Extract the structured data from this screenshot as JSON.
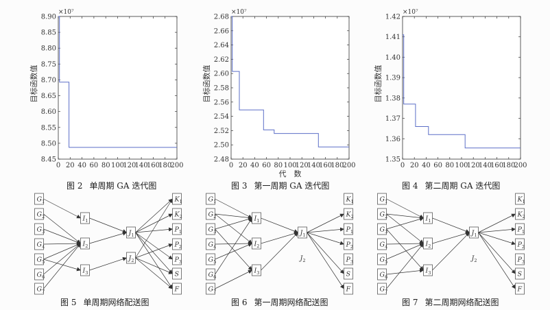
{
  "chart_data": [
    {
      "type": "line",
      "figure_number": "图 2",
      "caption": "单周期 GA 迭代图",
      "multiplier": "×10⁷",
      "xlabel": "",
      "ylabel": "目标函数值",
      "xlim": [
        0,
        200
      ],
      "ylim": [
        8.45,
        8.9
      ],
      "xticks": [
        0,
        20,
        40,
        60,
        80,
        100,
        120,
        140,
        160,
        180,
        200
      ],
      "yticks": [
        8.45,
        8.5,
        8.55,
        8.6,
        8.65,
        8.7,
        8.75,
        8.8,
        8.85,
        8.9
      ],
      "ytick_labels": [
        "8.45",
        "8.50",
        "8.55",
        "8.60",
        "8.65",
        "8.70",
        "8.75",
        "8.80",
        "8.85",
        "8.90"
      ],
      "x": [
        0,
        2,
        2,
        18,
        18,
        200
      ],
      "y": [
        8.9,
        8.9,
        8.693,
        8.693,
        8.487,
        8.487
      ],
      "grid": false,
      "line_color": "#5b6ec7"
    },
    {
      "type": "line",
      "figure_number": "图 3",
      "caption": "第一周期 GA 迭代图",
      "multiplier": "×10⁷",
      "xlabel": "代　数",
      "ylabel": "目标函数值",
      "xlim": [
        0,
        200
      ],
      "ylim": [
        2.48,
        2.68
      ],
      "xticks": [
        0,
        20,
        40,
        60,
        80,
        100,
        120,
        140,
        160,
        180,
        200
      ],
      "yticks": [
        2.48,
        2.5,
        2.52,
        2.54,
        2.56,
        2.58,
        2.6,
        2.62,
        2.64,
        2.66,
        2.68
      ],
      "ytick_labels": [
        "2.48",
        "2.50",
        "2.52",
        "2.54",
        "2.56",
        "2.58",
        "2.60",
        "2.62",
        "2.64",
        "2.66",
        "2.68"
      ],
      "x": [
        0,
        2,
        2,
        14,
        14,
        55,
        55,
        73,
        73,
        148,
        148,
        200
      ],
      "y": [
        2.68,
        2.68,
        2.603,
        2.603,
        2.549,
        2.549,
        2.521,
        2.521,
        2.516,
        2.516,
        2.497,
        2.497
      ],
      "grid": false,
      "line_color": "#5b6ec7"
    },
    {
      "type": "line",
      "figure_number": "图 4",
      "caption": "第二周期 GA 迭代图",
      "multiplier": "×10⁷",
      "xlabel": "",
      "ylabel": "目标函数值",
      "xlim": [
        0,
        200
      ],
      "ylim": [
        1.35,
        1.42
      ],
      "xticks": [
        0,
        20,
        40,
        60,
        80,
        100,
        120,
        140,
        160,
        180,
        200
      ],
      "yticks": [
        1.35,
        1.36,
        1.37,
        1.38,
        1.39,
        1.4,
        1.41,
        1.42
      ],
      "ytick_labels": [
        "1.35",
        "1.36",
        "1.37",
        "1.38",
        "1.39",
        "1.40",
        "1.41",
        "1.42"
      ],
      "x": [
        0,
        2,
        2,
        22,
        22,
        44,
        44,
        106,
        106,
        200
      ],
      "y": [
        1.411,
        1.411,
        1.377,
        1.377,
        1.366,
        1.366,
        1.362,
        1.362,
        1.3555,
        1.3555
      ],
      "grid": false,
      "line_color": "#5b6ec7"
    }
  ],
  "network_figures": [
    {
      "figure_number": "图 5",
      "caption": "单周期网络配送图",
      "edges": [
        [
          "G1",
          "I1"
        ],
        [
          "G2",
          "I2"
        ],
        [
          "G3",
          "I2"
        ],
        [
          "G4",
          "I2"
        ],
        [
          "G5",
          "I2"
        ],
        [
          "G6",
          "I2"
        ],
        [
          "G7",
          "I2"
        ],
        [
          "G5",
          "I3"
        ],
        [
          "I1",
          "J1"
        ],
        [
          "I2",
          "J1"
        ],
        [
          "I3",
          "J2"
        ],
        [
          "J1",
          "K1"
        ],
        [
          "J1",
          "K2"
        ],
        [
          "J1",
          "P1"
        ],
        [
          "J1",
          "P3"
        ],
        [
          "J1",
          "S"
        ],
        [
          "J1",
          "F"
        ],
        [
          "J2",
          "K1"
        ],
        [
          "J2",
          "P2"
        ],
        [
          "J2",
          "S"
        ],
        [
          "J2",
          "F"
        ]
      ]
    },
    {
      "figure_number": "图 6",
      "caption": "第一周期网络配送图",
      "edges": [
        [
          "G1",
          "I1"
        ],
        [
          "G2",
          "I1"
        ],
        [
          "G3",
          "I1"
        ],
        [
          "G2",
          "I2"
        ],
        [
          "G4",
          "I2"
        ],
        [
          "G5",
          "I2"
        ],
        [
          "G6",
          "I1"
        ],
        [
          "G3",
          "I3"
        ],
        [
          "G7",
          "I3"
        ],
        [
          "I1",
          "J1"
        ],
        [
          "I2",
          "J1"
        ],
        [
          "I3",
          "J1"
        ],
        [
          "J1",
          "K2"
        ],
        [
          "J1",
          "P1"
        ],
        [
          "J1",
          "P2"
        ],
        [
          "J1",
          "S"
        ],
        [
          "J1",
          "F"
        ]
      ]
    },
    {
      "figure_number": "图 7",
      "caption": "第二周期网络配送图",
      "edges": [
        [
          "G1",
          "I1"
        ],
        [
          "G2",
          "I1"
        ],
        [
          "G3",
          "I1"
        ],
        [
          "G2",
          "I2"
        ],
        [
          "G4",
          "I2"
        ],
        [
          "G5",
          "I2"
        ],
        [
          "G3",
          "I3"
        ],
        [
          "G6",
          "I3"
        ],
        [
          "G7",
          "I2"
        ],
        [
          "I1",
          "J1"
        ],
        [
          "I2",
          "J1"
        ],
        [
          "I3",
          "J1"
        ],
        [
          "J1",
          "K2"
        ],
        [
          "J1",
          "P1"
        ],
        [
          "J1",
          "P2"
        ],
        [
          "J1",
          "S"
        ],
        [
          "J1",
          "F"
        ]
      ]
    }
  ],
  "network_nodes": {
    "G1": {
      "base": "G",
      "sub": "1"
    },
    "G2": {
      "base": "G",
      "sub": "2"
    },
    "G3": {
      "base": "G",
      "sub": "3"
    },
    "G4": {
      "base": "G",
      "sub": "4"
    },
    "G5": {
      "base": "G",
      "sub": "5"
    },
    "G6": {
      "base": "G",
      "sub": "6"
    },
    "G7": {
      "base": "G",
      "sub": "7"
    },
    "I1": {
      "base": "I",
      "sub": "1"
    },
    "I2": {
      "base": "I",
      "sub": "2"
    },
    "I3": {
      "base": "I",
      "sub": "3"
    },
    "J1": {
      "base": "J",
      "sub": "1"
    },
    "J2": {
      "base": "J",
      "sub": "2"
    },
    "K1": {
      "base": "K",
      "sub": "1"
    },
    "K2": {
      "base": "K",
      "sub": "2"
    },
    "P1": {
      "base": "P",
      "sub": "1"
    },
    "P2": {
      "base": "P",
      "sub": "2"
    },
    "P3": {
      "base": "P",
      "sub": "3"
    },
    "S": {
      "base": "S",
      "sub": ""
    },
    "F": {
      "base": "F",
      "sub": ""
    }
  },
  "colors": {
    "line": "#5b6ec7",
    "axis": "#333333",
    "node_border": "#555555",
    "node_fill": "#ffffff",
    "edge": "#333333"
  }
}
